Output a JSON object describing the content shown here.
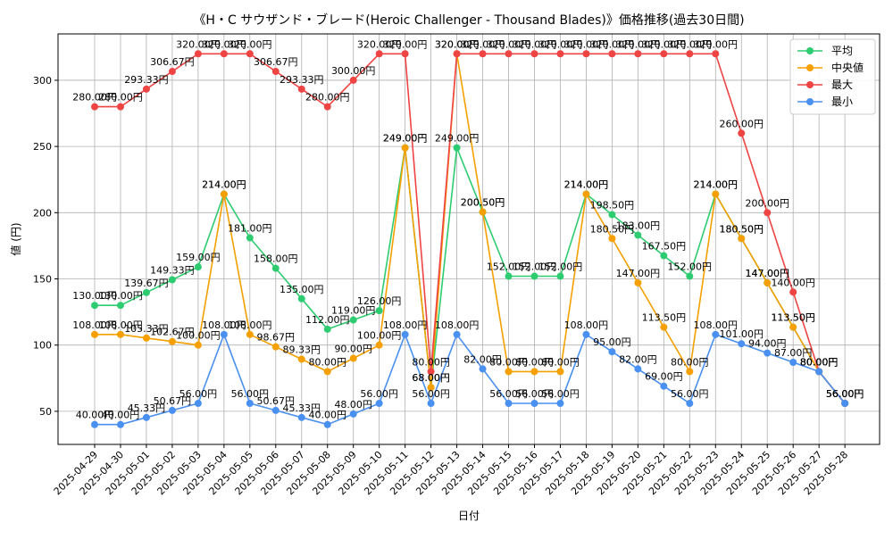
{
  "chart_data": {
    "type": "line",
    "title": "《H・C サウザンド・ブレード(Heroic Challenger - Thousand Blades)》価格推移(過去30日間)",
    "xlabel": "日付",
    "ylabel": "値 (円)",
    "ylim": [
      25,
      335
    ],
    "yticks": [
      50,
      100,
      150,
      200,
      250,
      300
    ],
    "grid": true,
    "legend_position": "top-right",
    "value_suffix": "円",
    "x": [
      "2025-04-29",
      "2025-04-30",
      "2025-05-01",
      "2025-05-02",
      "2025-05-03",
      "2025-05-04",
      "2025-05-05",
      "2025-05-06",
      "2025-05-07",
      "2025-05-08",
      "2025-05-09",
      "2025-05-10",
      "2025-05-11",
      "2025-05-12",
      "2025-05-13",
      "2025-05-14",
      "2025-05-15",
      "2025-05-16",
      "2025-05-17",
      "2025-05-18",
      "2025-05-19",
      "2025-05-20",
      "2025-05-21",
      "2025-05-22",
      "2025-05-23",
      "2025-05-24",
      "2025-05-25",
      "2025-05-26",
      "2025-05-27",
      "2025-05-28"
    ],
    "series": [
      {
        "name": "平均",
        "color": "#2ecc71",
        "values": [
          130,
          130,
          139.67,
          149.33,
          159,
          214,
          181,
          158,
          135,
          112,
          119,
          126,
          249,
          68,
          249,
          200.5,
          152,
          152,
          152,
          214,
          198.5,
          183,
          167.5,
          152,
          214,
          180.5,
          147,
          113.5,
          80,
          56
        ]
      },
      {
        "name": "中央値",
        "color": "#f5a000",
        "values": [
          108,
          108,
          105.33,
          102.67,
          100,
          214,
          108,
          98.67,
          89.33,
          80,
          90,
          100,
          249,
          68,
          320,
          200.5,
          80,
          80,
          80,
          214,
          180.5,
          147,
          113.5,
          80,
          214,
          180.5,
          147,
          113.5,
          80,
          56
        ]
      },
      {
        "name": "最大",
        "color": "#ef4444",
        "values": [
          280,
          280,
          293.33,
          306.67,
          320,
          320,
          320,
          306.67,
          293.33,
          280,
          300,
          320,
          320,
          80,
          320,
          320,
          320,
          320,
          320,
          320,
          320,
          320,
          320,
          320,
          320,
          260,
          200,
          140,
          80,
          56
        ]
      },
      {
        "name": "最小",
        "color": "#4a90f0",
        "values": [
          40,
          40,
          45.33,
          50.67,
          56,
          108,
          56,
          50.67,
          45.33,
          40,
          48,
          56,
          108,
          56,
          108,
          82,
          56,
          56,
          56,
          108,
          95,
          82,
          69,
          56,
          108,
          101,
          94,
          87,
          80,
          56
        ]
      }
    ]
  }
}
